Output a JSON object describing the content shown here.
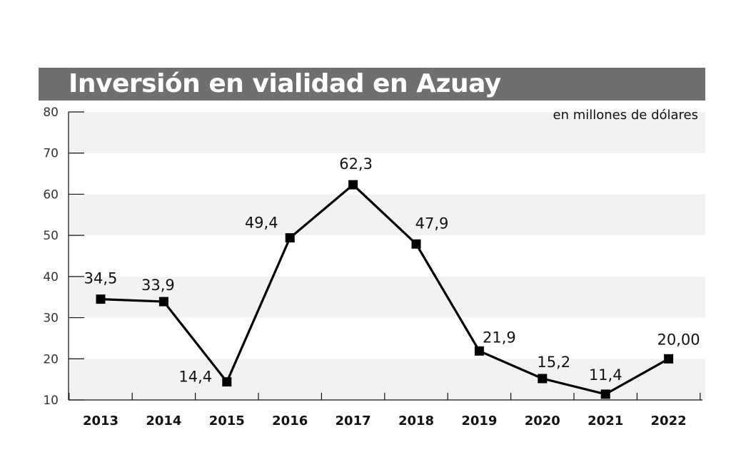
{
  "chart_data": {
    "type": "line",
    "title": "Inversión en vialidad en Azuay",
    "unit_label": "en millones de dólares",
    "categories": [
      "2013",
      "2014",
      "2015",
      "2016",
      "2017",
      "2018",
      "2019",
      "2020",
      "2021",
      "2022"
    ],
    "values": [
      34.5,
      33.9,
      14.4,
      49.4,
      62.3,
      47.9,
      21.9,
      15.2,
      11.4,
      20.0
    ],
    "data_labels": [
      "34,5",
      "33,9",
      "14,4",
      "49,4",
      "62,3",
      "47,9",
      "21,9",
      "15,2",
      "11,4",
      "20,00"
    ],
    "yticks": [
      10,
      20,
      30,
      40,
      50,
      60,
      70,
      80
    ],
    "ylim": [
      10,
      80
    ],
    "grid": "alternating horizontal bands",
    "legend": "none",
    "colors": {
      "line": "#000000",
      "band": "#f2f2f2",
      "title_bar": "#6f6f6f"
    }
  }
}
